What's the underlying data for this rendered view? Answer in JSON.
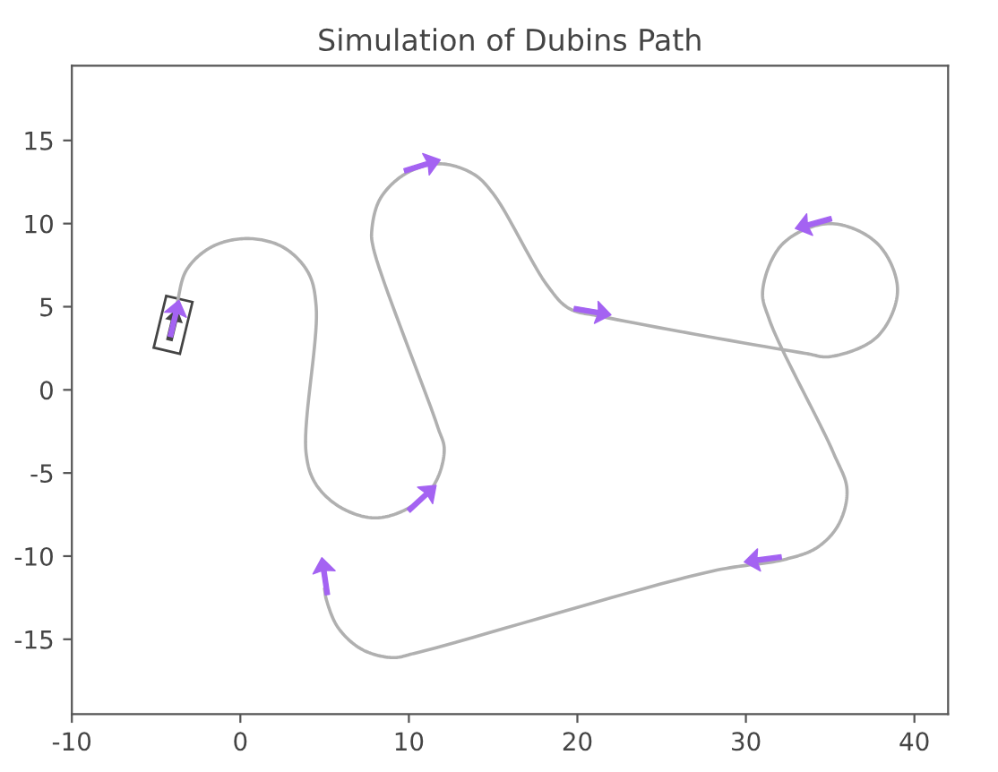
{
  "chart_data": {
    "type": "line",
    "title": "Simulation of Dubins Path",
    "xlim": [
      -10,
      42
    ],
    "ylim": [
      -19.5,
      19.5
    ],
    "xticks": [
      -10,
      0,
      10,
      20,
      30,
      40
    ],
    "yticks": [
      -15,
      -10,
      -5,
      0,
      5,
      10,
      15
    ],
    "grid": false,
    "series": [
      {
        "type": "line",
        "color": "#b0b0b0",
        "x": [
          -3.8,
          -3.2,
          -1.7,
          0.4,
          2.5,
          4.0,
          4.5,
          3.9,
          4.5,
          6.0,
          8.0,
          10.0,
          11.5,
          12.1,
          11.7,
          7.9,
          7.8,
          8.3,
          9.8,
          11.8,
          13.8,
          15.0,
          18.2,
          19.5,
          21.5,
          33.5,
          35,
          37.8,
          39,
          37.8,
          35,
          32.2,
          31,
          31.4,
          35.2,
          36,
          35.5,
          34.2,
          32.3,
          28,
          10.5,
          9,
          7.2,
          5.8,
          5.1,
          5.0
        ],
        "values": [
          5.0,
          7.2,
          8.6,
          9.1,
          8.6,
          7.1,
          5.0,
          -3.8,
          -5.7,
          -7.1,
          -7.7,
          -7.1,
          -5.7,
          -3.6,
          -2.2,
          8.5,
          9.6,
          11.5,
          13.0,
          13.6,
          13.0,
          11.8,
          6.3,
          4.9,
          4.4,
          2.2,
          2,
          3.2,
          6,
          8.8,
          10,
          8.8,
          6,
          4.2,
          -3.8,
          -6,
          -8.1,
          -9.5,
          -10.2,
          -10.9,
          -15.8,
          -16.1,
          -15.6,
          -14.3,
          -12.6,
          -12.0
        ]
      },
      {
        "type": "scatter",
        "color": "#a463f2",
        "x": [
          -3.9,
          10.8,
          20.9,
          34.0,
          31.0,
          10.8,
          5.0
        ],
        "values": [
          4.3,
          13.5,
          4.7,
          10.0,
          -10.2,
          -6.5,
          -11.2
        ]
      }
    ]
  }
}
